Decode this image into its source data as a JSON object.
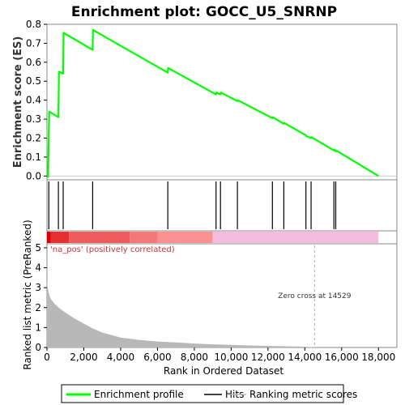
{
  "chart_data": {
    "type": "line",
    "title": "Enrichment plot: GOCC_U5_SNRNP",
    "es_panel": {
      "ylabel": "Enrichment score (ES)",
      "ylim": [
        -0.02,
        0.8
      ],
      "yticks": [
        "0.0",
        "0.1",
        "0.2",
        "0.3",
        "0.4",
        "0.5",
        "0.6",
        "0.7",
        "0.8"
      ],
      "ytick_values": [
        0.0,
        0.1,
        0.2,
        0.3,
        0.4,
        0.5,
        0.6,
        0.7,
        0.8
      ],
      "series": [
        {
          "name": "Enrichment profile",
          "color": "#00ff00",
          "x": [
            0,
            60,
            120,
            620,
            650,
            880,
            900,
            2480,
            2500,
            6560,
            6580,
            9180,
            9200,
            9420,
            9450,
            10340,
            10360,
            12240,
            12260,
            12860,
            12880,
            14060,
            14080,
            14340,
            14360,
            15580,
            15600,
            15680,
            15700,
            18000
          ],
          "y": [
            0.0,
            -0.005,
            0.34,
            0.31,
            0.55,
            0.54,
            0.755,
            0.665,
            0.77,
            0.545,
            0.57,
            0.43,
            0.44,
            0.43,
            0.44,
            0.395,
            0.4,
            0.305,
            0.31,
            0.275,
            0.28,
            0.215,
            0.21,
            0.2,
            0.205,
            0.135,
            0.14,
            0.13,
            0.135,
            0.0
          ]
        }
      ]
    },
    "hits": {
      "name": "Hits",
      "color": "#000000",
      "x": [
        100,
        620,
        880,
        2480,
        6560,
        9180,
        9420,
        10340,
        12240,
        12860,
        14060,
        14340,
        15580,
        15680
      ]
    },
    "ranking_bar": {
      "segments": [
        {
          "from": 0,
          "to": 200,
          "color": "#d60000"
        },
        {
          "from": 200,
          "to": 1200,
          "color": "#e43030"
        },
        {
          "from": 1200,
          "to": 4500,
          "color": "#ef5a5a"
        },
        {
          "from": 4500,
          "to": 6000,
          "color": "#f57878"
        },
        {
          "from": 6000,
          "to": 9000,
          "color": "#fa9090"
        },
        {
          "from": 9000,
          "to": 18000,
          "color": "#f7bde0"
        }
      ]
    },
    "metric_panel": {
      "ylabel": "Ranked list metric (PreRanked)",
      "ylim": [
        0,
        5.2
      ],
      "yticks": [
        "0",
        "1",
        "2",
        "3",
        "4",
        "5"
      ],
      "ytick_values": [
        0,
        1,
        2,
        3,
        4,
        5
      ],
      "fill_color": "#b8b8b8",
      "series": [
        {
          "name": "Ranking metric scores",
          "x": [
            0,
            30,
            100,
            200,
            400,
            700,
            1000,
            1500,
            2000,
            2500,
            3000,
            4000,
            5000,
            6000,
            7000,
            8000,
            9000,
            10000,
            11000,
            12000,
            13000,
            14000,
            14400,
            14529
          ],
          "y": [
            3.45,
            3.05,
            2.7,
            2.45,
            2.2,
            1.95,
            1.75,
            1.45,
            1.2,
            0.95,
            0.75,
            0.5,
            0.38,
            0.3,
            0.25,
            0.2,
            0.16,
            0.13,
            0.1,
            0.08,
            0.06,
            0.04,
            0.02,
            0.0
          ]
        }
      ],
      "annotation_pos": "'na_pos' (positively correlated)",
      "zero_cross_label": "Zero cross at 14529",
      "zero_cross": 14529
    },
    "xlabel": "Rank in Ordered Dataset",
    "xlim": [
      0,
      19000
    ],
    "xticks": [
      "0",
      "2,000",
      "4,000",
      "6,000",
      "8,000",
      "10,000",
      "12,000",
      "14,000",
      "16,000",
      "18,000"
    ],
    "xtick_values": [
      0,
      2000,
      4000,
      6000,
      8000,
      10000,
      12000,
      14000,
      16000,
      18000
    ],
    "legend": {
      "placement": "bottom",
      "items": [
        {
          "label": "Enrichment profile",
          "color": "#00ff00"
        },
        {
          "label": "Hits",
          "color": "#000000"
        },
        {
          "label": "Ranking metric scores",
          "color": "#b8b8b8"
        }
      ]
    }
  }
}
